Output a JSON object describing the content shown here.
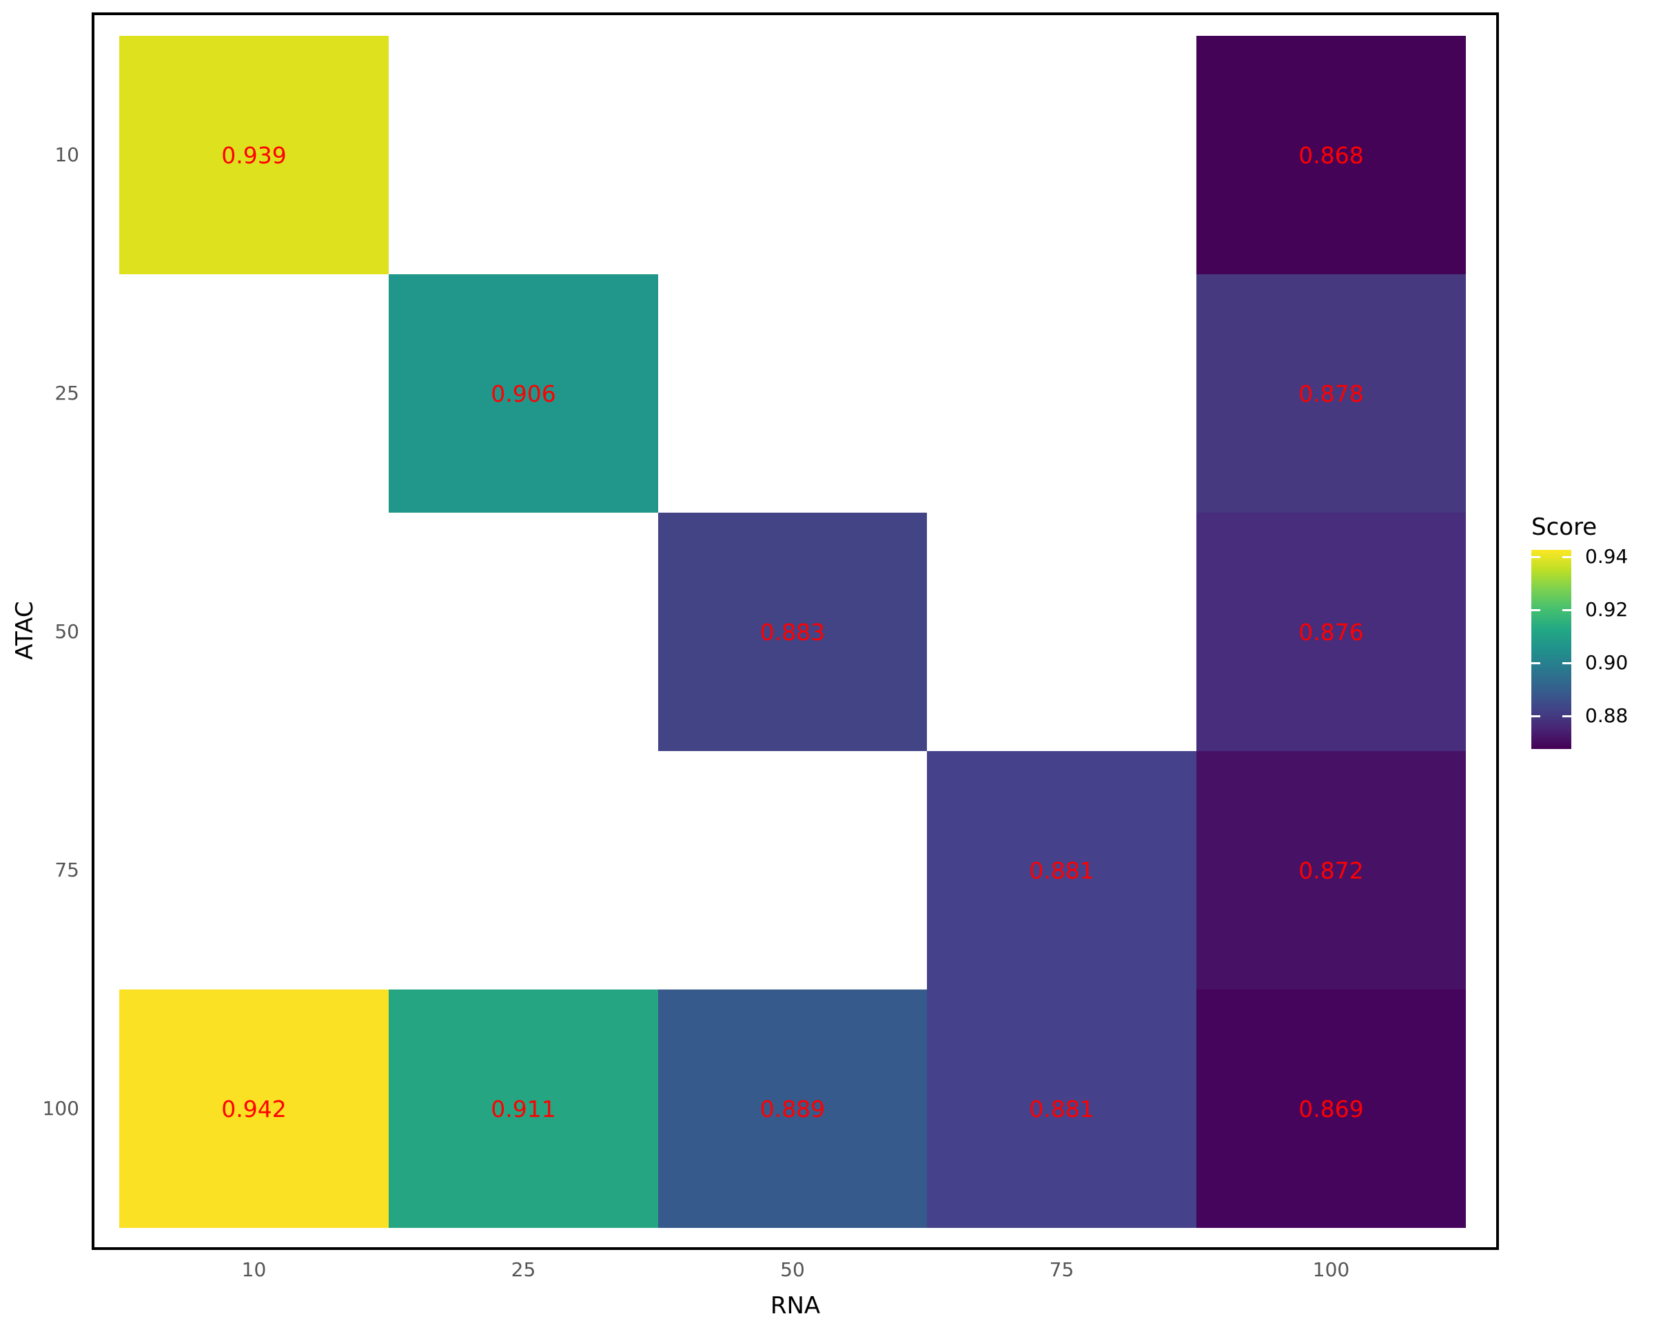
{
  "chart_data": {
    "type": "heatmap",
    "xlabel": "RNA",
    "ylabel": "ATAC",
    "x_categories": [
      "10",
      "25",
      "50",
      "75",
      "100"
    ],
    "y_categories": [
      "10",
      "25",
      "50",
      "75",
      "100"
    ],
    "value_label_color": "#ff0000",
    "grid": "off",
    "legend": {
      "title": "Score",
      "position": "right",
      "ticks": [
        "0.94",
        "0.92",
        "0.90",
        "0.88"
      ],
      "range": [
        0.868,
        0.942
      ],
      "colormap": "viridis",
      "colormap_stops": [
        "#440154",
        "#482475",
        "#414487",
        "#355f8d",
        "#2a788e",
        "#21918c",
        "#22a884",
        "#44bf70",
        "#7ad151",
        "#bddf26",
        "#fde725"
      ]
    },
    "cells": [
      {
        "x": "10",
        "y": "10",
        "value": "0.939",
        "color": "#dee21e"
      },
      {
        "x": "100",
        "y": "10",
        "value": "0.868",
        "color": "#440357"
      },
      {
        "x": "25",
        "y": "25",
        "value": "0.906",
        "color": "#21968b"
      },
      {
        "x": "100",
        "y": "25",
        "value": "0.878",
        "color": "#46397f"
      },
      {
        "x": "50",
        "y": "50",
        "value": "0.883",
        "color": "#424486"
      },
      {
        "x": "100",
        "y": "50",
        "value": "0.876",
        "color": "#472d7c"
      },
      {
        "x": "75",
        "y": "75",
        "value": "0.881",
        "color": "#45428b"
      },
      {
        "x": "100",
        "y": "75",
        "value": "0.872",
        "color": "#471266"
      },
      {
        "x": "10",
        "y": "100",
        "value": "0.942",
        "color": "#fbe123"
      },
      {
        "x": "25",
        "y": "100",
        "value": "0.911",
        "color": "#26a583"
      },
      {
        "x": "50",
        "y": "100",
        "value": "0.889",
        "color": "#375a8c"
      },
      {
        "x": "75",
        "y": "100",
        "value": "0.881",
        "color": "#45428b"
      },
      {
        "x": "100",
        "y": "100",
        "value": "0.869",
        "color": "#45055c"
      }
    ]
  }
}
